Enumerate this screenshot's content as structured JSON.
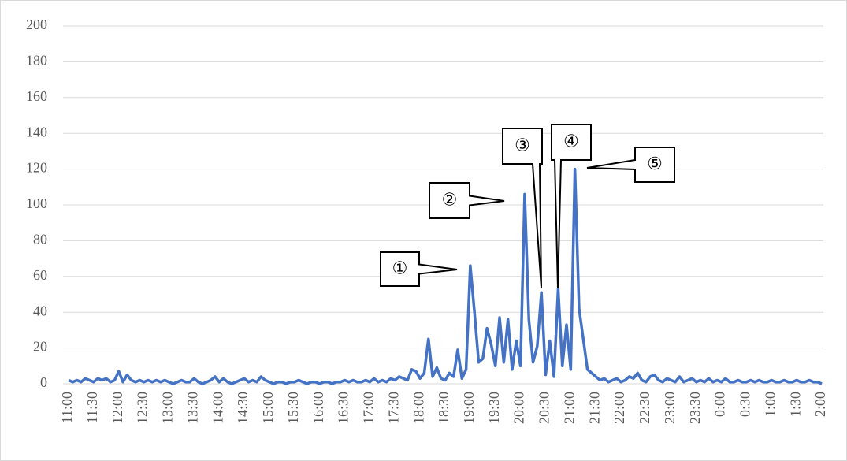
{
  "chart_data": {
    "type": "line",
    "categories": [
      "11:00",
      null,
      null,
      null,
      null,
      null,
      "11:30",
      null,
      null,
      null,
      null,
      null,
      "12:00",
      null,
      null,
      null,
      null,
      null,
      "12:30",
      null,
      null,
      null,
      null,
      null,
      "13:00",
      null,
      null,
      null,
      null,
      null,
      "13:30",
      null,
      null,
      null,
      null,
      null,
      "14:00",
      null,
      null,
      null,
      null,
      null,
      "14:30",
      null,
      null,
      null,
      null,
      null,
      "15:00",
      null,
      null,
      null,
      null,
      null,
      "15:30",
      null,
      null,
      null,
      null,
      null,
      "16:00",
      null,
      null,
      null,
      null,
      null,
      "16:30",
      null,
      null,
      null,
      null,
      null,
      "17:00",
      null,
      null,
      null,
      null,
      null,
      "17:30",
      null,
      null,
      null,
      null,
      null,
      "18:00",
      null,
      null,
      null,
      null,
      null,
      "18:30",
      null,
      null,
      null,
      null,
      null,
      "19:00",
      null,
      null,
      null,
      null,
      null,
      "19:30",
      null,
      null,
      null,
      null,
      null,
      "20:00",
      null,
      null,
      null,
      null,
      null,
      "20:30",
      null,
      null,
      null,
      null,
      null,
      "21:00",
      null,
      null,
      null,
      null,
      null,
      "21:30",
      null,
      null,
      null,
      null,
      null,
      "22:00",
      null,
      null,
      null,
      null,
      null,
      "22:30",
      null,
      null,
      null,
      null,
      null,
      "23:00",
      null,
      null,
      null,
      null,
      null,
      "23:30",
      null,
      null,
      null,
      null,
      null,
      "0:00",
      null,
      null,
      null,
      null,
      null,
      "0:30",
      null,
      null,
      null,
      null,
      null,
      "1:00",
      null,
      null,
      null,
      null,
      null,
      "1:30",
      null,
      null,
      null,
      null,
      null,
      "2:00"
    ],
    "values": [
      2,
      1,
      2,
      1,
      3,
      2,
      1,
      3,
      2,
      3,
      1,
      2,
      7,
      1,
      5,
      2,
      1,
      2,
      1,
      2,
      1,
      2,
      1,
      2,
      1,
      0,
      1,
      2,
      1,
      1,
      3,
      1,
      0,
      1,
      2,
      4,
      1,
      3,
      1,
      0,
      1,
      2,
      3,
      1,
      2,
      1,
      4,
      2,
      1,
      0,
      1,
      1,
      0,
      1,
      1,
      2,
      1,
      0,
      1,
      1,
      0,
      1,
      1,
      0,
      1,
      1,
      2,
      1,
      2,
      1,
      1,
      2,
      1,
      3,
      1,
      2,
      1,
      3,
      2,
      4,
      3,
      2,
      8,
      7,
      3,
      6,
      25,
      4,
      9,
      3,
      2,
      6,
      4,
      19,
      3,
      8,
      66,
      40,
      12,
      14,
      31,
      22,
      10,
      37,
      12,
      36,
      8,
      24,
      10,
      106,
      36,
      12,
      21,
      51,
      5,
      24,
      4,
      53,
      10,
      33,
      8,
      120,
      42,
      25,
      8,
      6,
      4,
      2,
      3,
      1,
      2,
      3,
      1,
      2,
      4,
      3,
      6,
      2,
      1,
      4,
      5,
      2,
      1,
      3,
      2,
      1,
      4,
      1,
      2,
      3,
      1,
      2,
      1,
      3,
      1,
      2,
      1,
      3,
      1,
      1,
      2,
      1,
      1,
      2,
      1,
      2,
      1,
      1,
      2,
      1,
      1,
      2,
      1,
      1,
      2,
      1,
      1,
      2,
      1,
      1,
      0
    ],
    "color": "#4472c4",
    "ylim": [
      0,
      200
    ],
    "yticks": [
      0,
      20,
      40,
      60,
      80,
      100,
      120,
      140,
      160,
      180,
      200
    ],
    "grid": true,
    "annotations": [
      "①",
      "②",
      "③",
      "④",
      "⑤"
    ]
  }
}
